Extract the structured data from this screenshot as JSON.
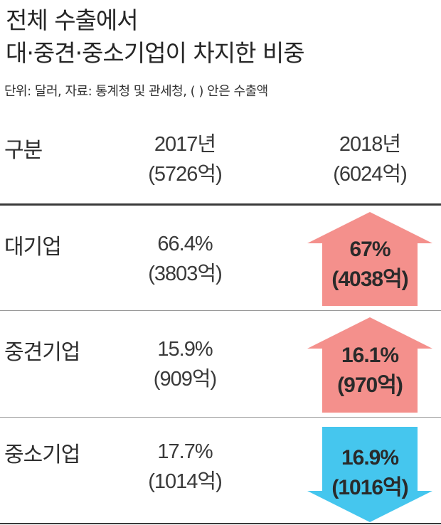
{
  "chart_data": {
    "type": "table",
    "title_lines": [
      "전체 수출에서",
      "대·중견·중소기업이 차지한 비중"
    ],
    "subtitle": "단위: 달러, 자료: 통계청 및 관세청, (  ) 안은 수출액",
    "header": {
      "label": "구분",
      "columns": [
        {
          "year": "2017년",
          "total": "(5726억)"
        },
        {
          "year": "2018년",
          "total": "(6024억)"
        }
      ]
    },
    "rows": [
      {
        "label": "대기업",
        "share_2017": "66.4%",
        "amount_2017": "(3803억)",
        "share_2018": "67%",
        "amount_2018": "(4038억)",
        "direction": "up"
      },
      {
        "label": "중견기업",
        "share_2017": "15.9%",
        "amount_2017": "(909억)",
        "share_2018": "16.1%",
        "amount_2018": "(970억)",
        "direction": "up"
      },
      {
        "label": "중소기업",
        "share_2017": "17.7%",
        "amount_2017": "(1014억)",
        "share_2018": "16.9%",
        "amount_2018": "(1016억)",
        "direction": "down"
      }
    ],
    "colors": {
      "up": "#f4908c",
      "down": "#45c6ee",
      "rule": "#3a3a3a",
      "divider": "#9a9a9a"
    }
  }
}
